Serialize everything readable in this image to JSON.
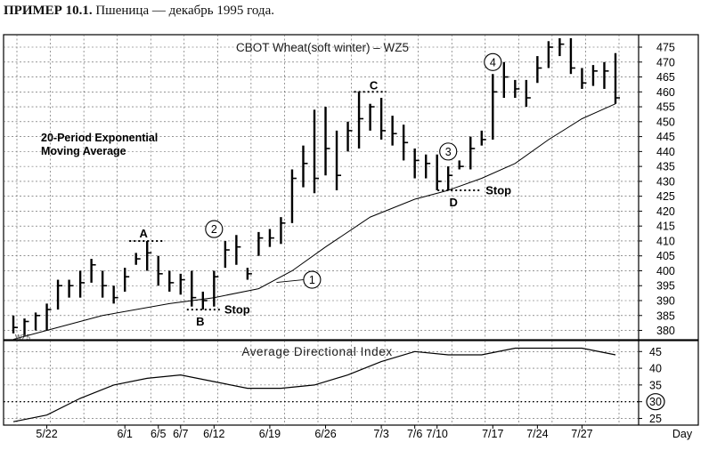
{
  "caption": {
    "number": "ПРИМЕР 10.1.",
    "text": "Пшеница — декабрь 1995 года."
  },
  "chart_data": [
    {
      "type": "ohlc",
      "title": "CBOT Wheat(soft winter) – WZ5",
      "xlabel": "Day",
      "x_ticks": [
        "5/22",
        "6/1",
        "6/5",
        "6/7",
        "6/12",
        "6/19",
        "6/26",
        "7/3",
        "7/6",
        "7/10",
        "7/17",
        "7/24",
        "7/27"
      ],
      "y_ticks": [
        380,
        385,
        390,
        395,
        400,
        405,
        410,
        415,
        420,
        425,
        430,
        435,
        440,
        445,
        450,
        455,
        460,
        465,
        470,
        475
      ],
      "ylim": [
        377,
        479
      ],
      "grid": true,
      "legend_text": [
        "20-Period Exponential",
        "Moving Average"
      ],
      "small_label": "WZ5",
      "bars": [
        {
          "high": 385,
          "low": 379,
          "close": 381
        },
        {
          "high": 384,
          "low": 378,
          "close": 383
        },
        {
          "high": 386,
          "low": 380,
          "close": 385
        },
        {
          "high": 389,
          "low": 380,
          "close": 387
        },
        {
          "high": 397,
          "low": 387,
          "close": 395
        },
        {
          "high": 397,
          "low": 391,
          "close": 395
        },
        {
          "high": 400,
          "low": 391,
          "close": 396
        },
        {
          "high": 404,
          "low": 396,
          "close": 402
        },
        {
          "high": 400,
          "low": 391,
          "close": 395
        },
        {
          "high": 395,
          "low": 389,
          "close": 391
        },
        {
          "high": 401,
          "low": 393,
          "close": 398
        },
        {
          "high": 406,
          "low": 402,
          "close": 404
        },
        {
          "high": 410,
          "low": 400,
          "close": 406
        },
        {
          "high": 405,
          "low": 395,
          "close": 399
        },
        {
          "high": 400,
          "low": 393,
          "close": 396
        },
        {
          "high": 399,
          "low": 392,
          "close": 397
        },
        {
          "high": 400,
          "low": 388,
          "close": 391
        },
        {
          "high": 393,
          "low": 387,
          "close": 390
        },
        {
          "high": 400,
          "low": 388,
          "close": 398
        },
        {
          "high": 410,
          "low": 401,
          "close": 407
        },
        {
          "high": 412,
          "low": 402,
          "close": 408
        },
        {
          "high": 401,
          "low": 397,
          "close": 399
        },
        {
          "high": 413,
          "low": 405,
          "close": 411
        },
        {
          "high": 414,
          "low": 408,
          "close": 411
        },
        {
          "high": 418,
          "low": 409,
          "close": 416
        },
        {
          "high": 434,
          "low": 416,
          "close": 431
        },
        {
          "high": 442,
          "low": 428,
          "close": 436
        },
        {
          "high": 454,
          "low": 426,
          "close": 431
        },
        {
          "high": 455,
          "low": 432,
          "close": 441
        },
        {
          "high": 447,
          "low": 427,
          "close": 432
        },
        {
          "high": 450,
          "low": 440,
          "close": 447
        },
        {
          "high": 460,
          "low": 441,
          "close": 451
        },
        {
          "high": 456,
          "low": 447,
          "close": 455
        },
        {
          "high": 458,
          "low": 444,
          "close": 447
        },
        {
          "high": 452,
          "low": 442,
          "close": 446
        },
        {
          "high": 449,
          "low": 437,
          "close": 443
        },
        {
          "high": 441,
          "low": 431,
          "close": 437
        },
        {
          "high": 439,
          "low": 431,
          "close": 436
        },
        {
          "high": 439,
          "low": 427,
          "close": 430
        },
        {
          "high": 435,
          "low": 427,
          "close": 432
        },
        {
          "high": 437,
          "low": 434,
          "close": 435
        },
        {
          "high": 445,
          "low": 434,
          "close": 441
        },
        {
          "high": 447,
          "low": 442,
          "close": 444
        },
        {
          "high": 466,
          "low": 444,
          "close": 460
        },
        {
          "high": 470,
          "low": 458,
          "close": 465
        },
        {
          "high": 464,
          "low": 458,
          "close": 461
        },
        {
          "high": 464,
          "low": 455,
          "close": 458
        },
        {
          "high": 472,
          "low": 463,
          "close": 468
        },
        {
          "high": 477,
          "low": 468,
          "close": 475
        },
        {
          "high": 478,
          "low": 472,
          "close": 476
        },
        {
          "high": 478,
          "low": 466,
          "close": 468
        },
        {
          "high": 468,
          "low": 461,
          "close": 463
        },
        {
          "high": 469,
          "low": 462,
          "close": 467
        },
        {
          "high": 470,
          "low": 461,
          "close": 467
        },
        {
          "high": 473,
          "low": 456,
          "close": 458
        }
      ],
      "ema": [
        {
          "i": 0,
          "v": 377
        },
        {
          "i": 3,
          "v": 380
        },
        {
          "i": 8,
          "v": 385
        },
        {
          "i": 14,
          "v": 389
        },
        {
          "i": 18,
          "v": 391
        },
        {
          "i": 22,
          "v": 394
        },
        {
          "i": 25,
          "v": 400
        },
        {
          "i": 28,
          "v": 408
        },
        {
          "i": 32,
          "v": 418
        },
        {
          "i": 36,
          "v": 424
        },
        {
          "i": 39,
          "v": 427
        },
        {
          "i": 42,
          "v": 431
        },
        {
          "i": 45,
          "v": 436
        },
        {
          "i": 48,
          "v": 444
        },
        {
          "i": 51,
          "v": 451
        },
        {
          "i": 54,
          "v": 456
        }
      ],
      "annotations": {
        "A": {
          "label": "A",
          "bar": 12,
          "value": 410
        },
        "B": {
          "label": "B",
          "bar": 17,
          "value": 387,
          "stop_label": "Stop"
        },
        "C": {
          "label": "C",
          "bar": 32,
          "value": 460
        },
        "D": {
          "label": "D",
          "bar": 39,
          "value": 427,
          "stop_label": "Stop"
        },
        "markers": [
          {
            "label": "1",
            "bar": 22,
            "value": 397
          },
          {
            "label": "2",
            "bar": 18,
            "value": 411
          },
          {
            "label": "3",
            "bar": 39,
            "value": 440
          },
          {
            "label": "4",
            "bar": 43,
            "value": 470
          }
        ]
      }
    },
    {
      "type": "line",
      "title": "Average Directional Index",
      "y_ticks": [
        25,
        30,
        35,
        40,
        45
      ],
      "ylim": [
        23,
        48
      ],
      "highlight_tick": "30",
      "reference_line": 30,
      "grid": true,
      "series": [
        {
          "values": [
            {
              "i": 0,
              "v": 24
            },
            {
              "i": 3,
              "v": 26
            },
            {
              "i": 6,
              "v": 31
            },
            {
              "i": 9,
              "v": 35
            },
            {
              "i": 12,
              "v": 37
            },
            {
              "i": 15,
              "v": 38
            },
            {
              "i": 18,
              "v": 36
            },
            {
              "i": 21,
              "v": 34
            },
            {
              "i": 24,
              "v": 34
            },
            {
              "i": 27,
              "v": 35
            },
            {
              "i": 30,
              "v": 38
            },
            {
              "i": 33,
              "v": 42
            },
            {
              "i": 36,
              "v": 45
            },
            {
              "i": 39,
              "v": 44
            },
            {
              "i": 42,
              "v": 44
            },
            {
              "i": 45,
              "v": 46
            },
            {
              "i": 48,
              "v": 46
            },
            {
              "i": 51,
              "v": 46
            },
            {
              "i": 54,
              "v": 44
            }
          ]
        }
      ]
    }
  ]
}
